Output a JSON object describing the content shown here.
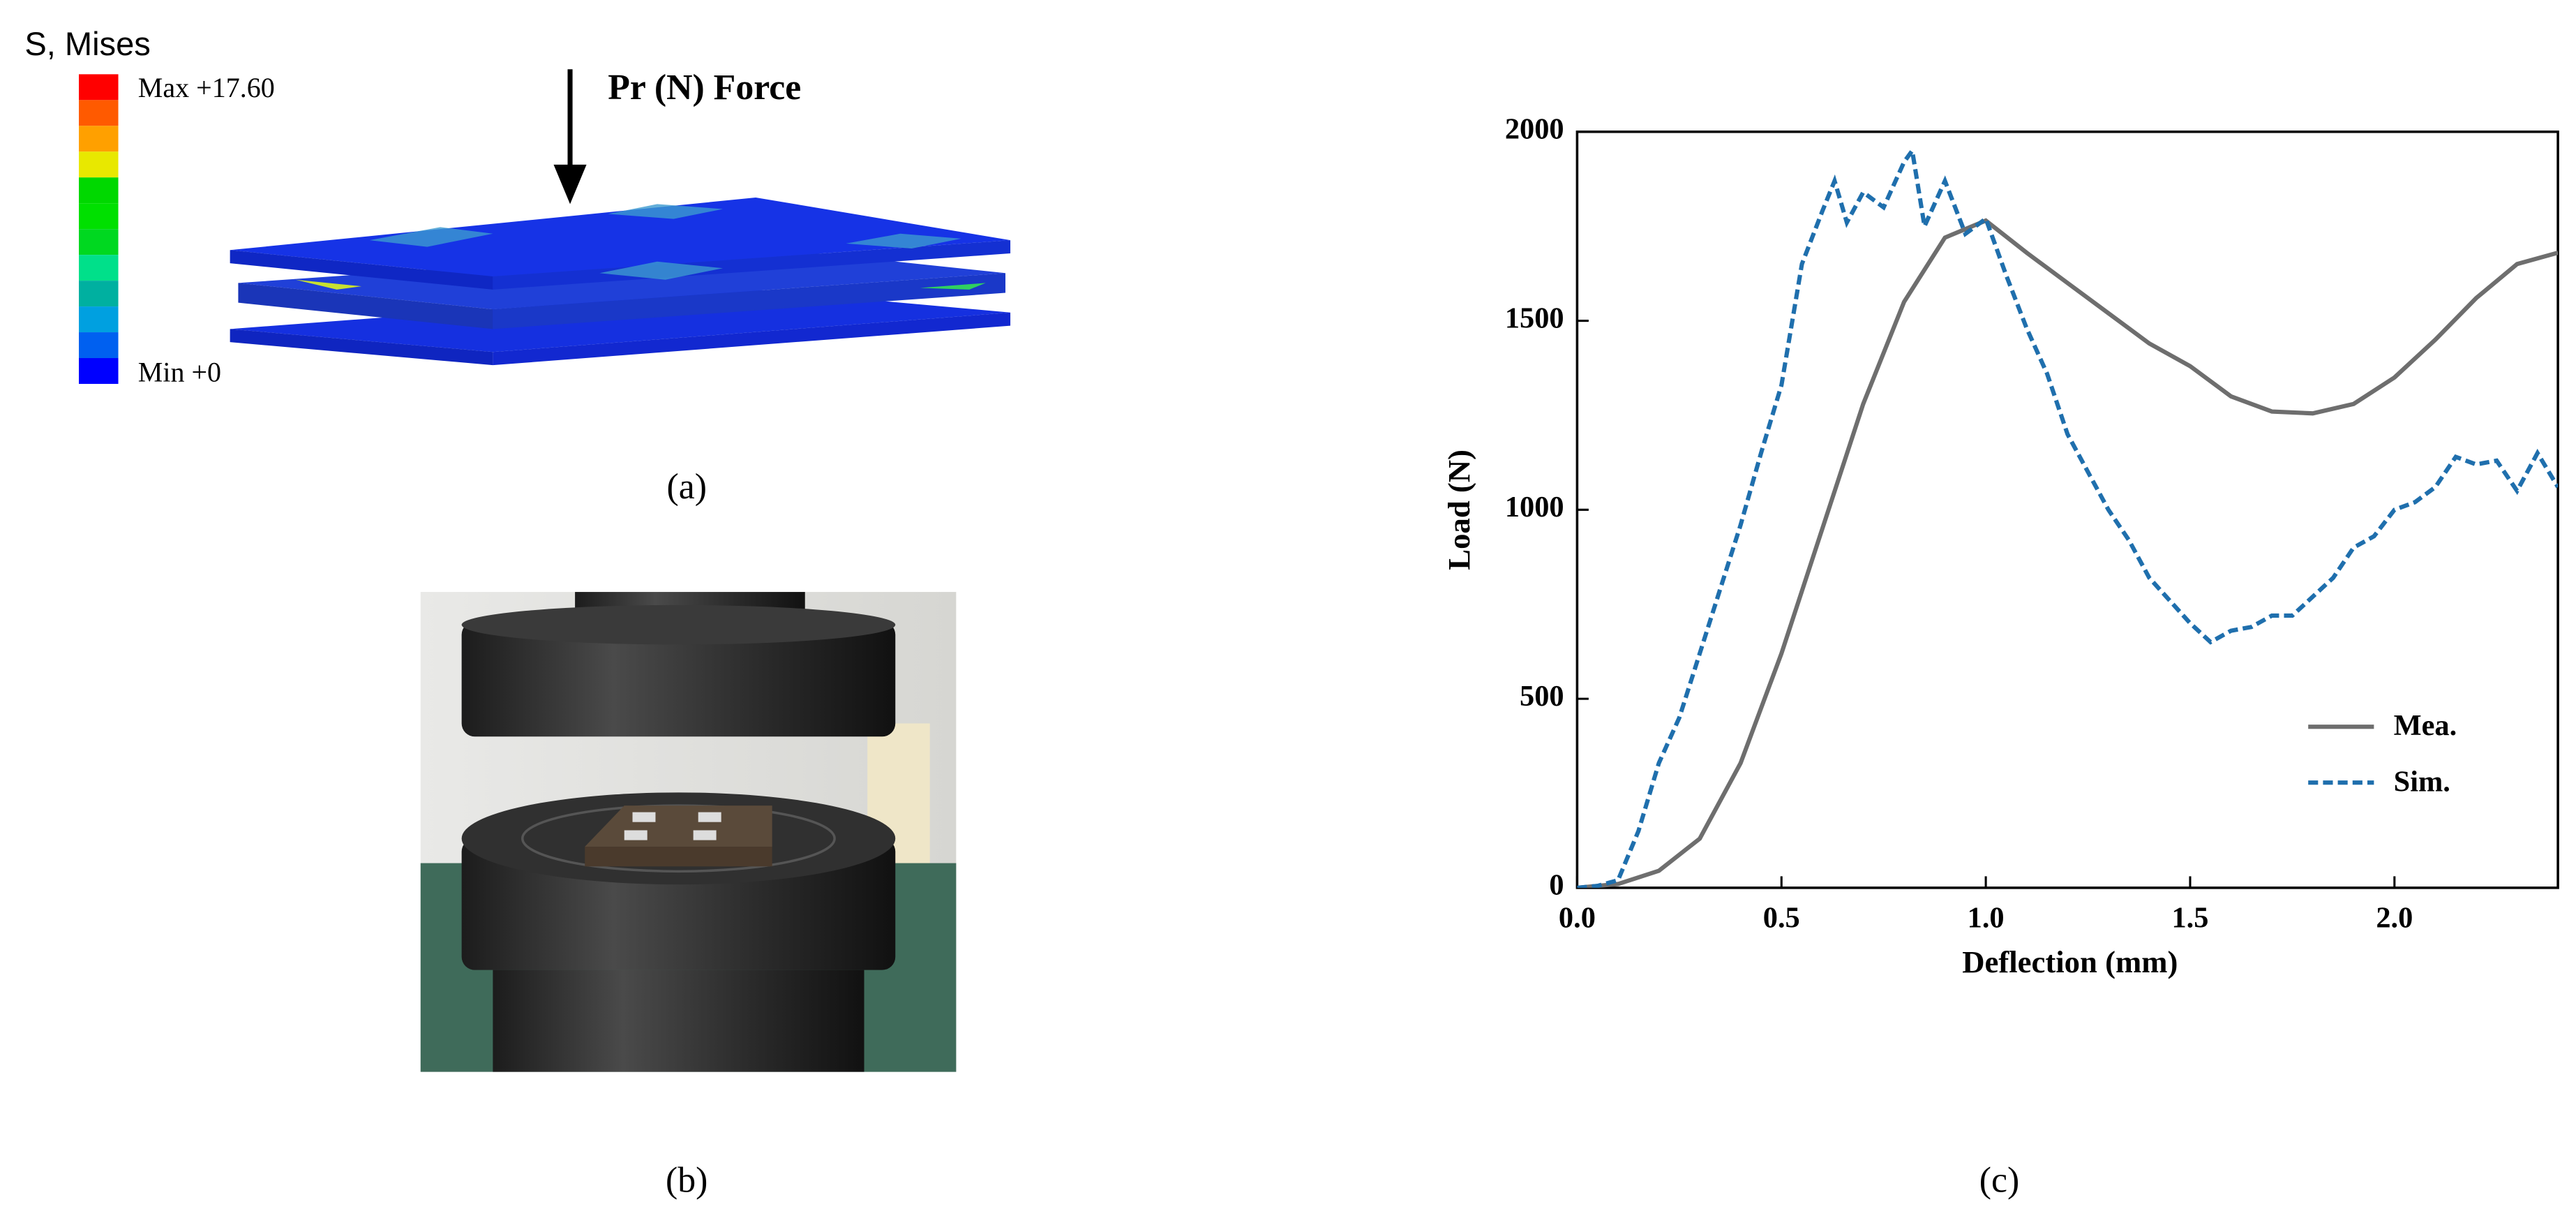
{
  "figure": {
    "panel_a": {
      "legend_title": "S, Mises",
      "max_label": "Max +17.60",
      "min_label": "Min +0",
      "force_label": "Pr (N) Force",
      "caption": "(a)"
    },
    "panel_b": {
      "caption": "(b)"
    },
    "panel_c": {
      "caption": "(c)"
    }
  },
  "chart_data": {
    "type": "line",
    "xlabel": "Deflection (mm)",
    "ylabel": "Load (N)",
    "xlim": [
      0,
      2.4
    ],
    "ylim": [
      0,
      2000
    ],
    "xticks": [
      {
        "value": 0,
        "label": "0.0"
      },
      0.5,
      {
        "value": 1,
        "label": "1.0"
      },
      1.5,
      {
        "value": 2,
        "label": "2.0"
      }
    ],
    "yticks": [
      0,
      500,
      1000,
      1500,
      2000
    ],
    "legend": "lower right",
    "series": [
      {
        "name": "Mea.",
        "color": "#6e6e6e",
        "dashed": false,
        "x": [
          0,
          0.1,
          0.2,
          0.3,
          0.4,
          0.5,
          0.6,
          0.7,
          0.8,
          0.9,
          1.0,
          1.1,
          1.2,
          1.3,
          1.4,
          1.5,
          1.6,
          1.7,
          1.8,
          1.9,
          2.0,
          2.1,
          2.2,
          2.3,
          2.4
        ],
        "values": [
          0,
          10,
          45,
          130,
          330,
          620,
          950,
          1280,
          1550,
          1720,
          1765,
          1680,
          1600,
          1520,
          1440,
          1380,
          1300,
          1260,
          1255,
          1280,
          1350,
          1450,
          1560,
          1650,
          1680
        ]
      },
      {
        "name": "Sim.",
        "color": "#1f6fad",
        "dashed": true,
        "x": [
          0,
          0.05,
          0.1,
          0.15,
          0.2,
          0.25,
          0.3,
          0.35,
          0.4,
          0.45,
          0.5,
          0.55,
          0.6,
          0.63,
          0.66,
          0.7,
          0.75,
          0.8,
          0.82,
          0.85,
          0.9,
          0.95,
          1.0,
          1.05,
          1.1,
          1.15,
          1.2,
          1.25,
          1.3,
          1.35,
          1.4,
          1.45,
          1.5,
          1.55,
          1.6,
          1.65,
          1.7,
          1.75,
          1.8,
          1.85,
          1.9,
          1.95,
          2.0,
          2.05,
          2.1,
          2.15,
          2.2,
          2.25,
          2.3,
          2.35,
          2.4
        ],
        "values": [
          0,
          5,
          20,
          150,
          330,
          450,
          620,
          790,
          960,
          1150,
          1330,
          1650,
          1790,
          1870,
          1760,
          1840,
          1800,
          1920,
          1950,
          1750,
          1870,
          1730,
          1770,
          1620,
          1480,
          1360,
          1200,
          1100,
          1000,
          920,
          820,
          760,
          700,
          650,
          680,
          690,
          720,
          720,
          770,
          820,
          900,
          930,
          1000,
          1020,
          1060,
          1140,
          1120,
          1130,
          1050,
          1150,
          1060
        ]
      }
    ]
  }
}
